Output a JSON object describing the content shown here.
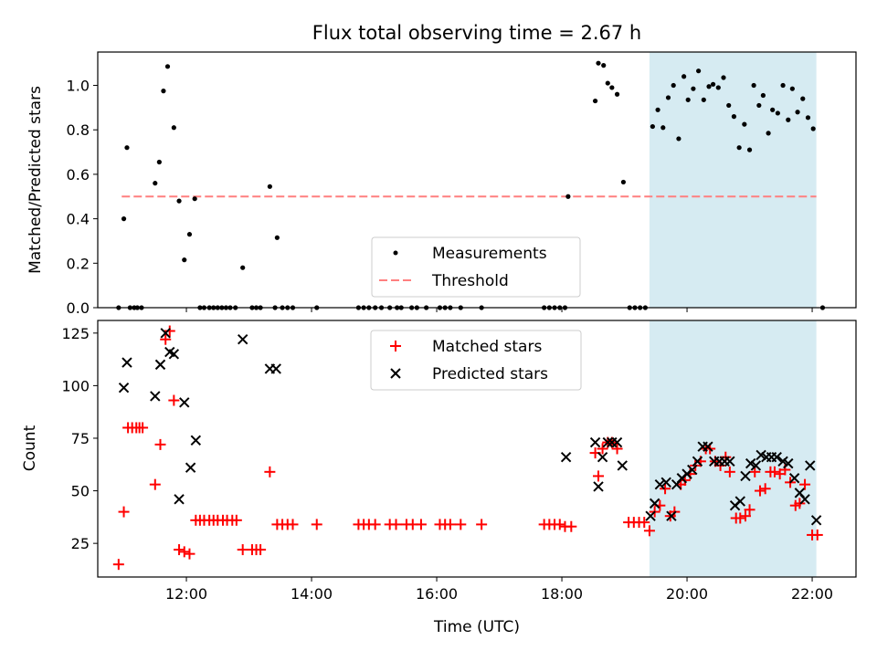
{
  "chart_data": [
    {
      "type": "scatter",
      "title": "Flux total observing time = 2.67 h",
      "ylabel": "Matched/Predicted stars",
      "xlim": [
        "10:35",
        "22:42"
      ],
      "ylim": [
        0,
        1.15
      ],
      "yticks": [
        0.0,
        0.2,
        0.4,
        0.6,
        0.8,
        1.0
      ],
      "ytick_labels": [
        "0.0",
        "0.2",
        "0.4",
        "0.6",
        "0.8",
        "1.0"
      ],
      "x_axis": "time (HH:MM, UTC)",
      "grid": false,
      "legend_position": "lower-center",
      "highlight_span": [
        "19:24",
        "22:04"
      ],
      "highlight_color": "#add8e6",
      "threshold": {
        "name": "Threshold",
        "value": 0.5,
        "x_range": [
          "10:58",
          "22:04"
        ],
        "color": "#ff7f7f",
        "style": "dashed"
      },
      "series": [
        {
          "name": "Measurements",
          "marker": "dot",
          "color": "#000000",
          "points": [
            [
              "10:55",
              0
            ],
            [
              "11:00",
              0.4
            ],
            [
              "11:03",
              0.72
            ],
            [
              "11:06",
              0
            ],
            [
              "11:10",
              0
            ],
            [
              "11:13",
              0
            ],
            [
              "11:17",
              0
            ],
            [
              "11:30",
              0.56
            ],
            [
              "11:34",
              0.655
            ],
            [
              "11:38",
              0.975
            ],
            [
              "11:42",
              1.085
            ],
            [
              "11:48",
              0.81
            ],
            [
              "11:53",
              0.48
            ],
            [
              "11:58",
              0.215
            ],
            [
              "12:03",
              0.33
            ],
            [
              "12:08",
              0.49
            ],
            [
              "12:13",
              0
            ],
            [
              "12:17",
              0
            ],
            [
              "12:22",
              0
            ],
            [
              "12:26",
              0
            ],
            [
              "12:30",
              0
            ],
            [
              "12:34",
              0
            ],
            [
              "12:38",
              0
            ],
            [
              "12:42",
              0
            ],
            [
              "12:47",
              0
            ],
            [
              "12:54",
              0.18
            ],
            [
              "13:03",
              0
            ],
            [
              "13:07",
              0
            ],
            [
              "13:11",
              0
            ],
            [
              "13:20",
              0.545
            ],
            [
              "13:25",
              0
            ],
            [
              "13:27",
              0.315
            ],
            [
              "13:32",
              0
            ],
            [
              "13:37",
              0
            ],
            [
              "13:42",
              0
            ],
            [
              "14:05",
              0
            ],
            [
              "14:45",
              0
            ],
            [
              "14:50",
              0
            ],
            [
              "14:55",
              0
            ],
            [
              "15:01",
              0
            ],
            [
              "15:07",
              0
            ],
            [
              "15:15",
              0
            ],
            [
              "15:22",
              0
            ],
            [
              "15:26",
              0
            ],
            [
              "15:36",
              0
            ],
            [
              "15:41",
              0
            ],
            [
              "15:50",
              0
            ],
            [
              "16:03",
              0
            ],
            [
              "16:08",
              0
            ],
            [
              "16:13",
              0
            ],
            [
              "16:23",
              0
            ],
            [
              "16:43",
              0
            ],
            [
              "17:43",
              0
            ],
            [
              "17:48",
              0
            ],
            [
              "17:53",
              0
            ],
            [
              "17:58",
              0
            ],
            [
              "18:03",
              0
            ],
            [
              "18:06",
              0.5
            ],
            [
              "18:32",
              0.93
            ],
            [
              "18:35",
              1.1
            ],
            [
              "18:40",
              1.09
            ],
            [
              "18:44",
              1.01
            ],
            [
              "18:48",
              0.99
            ],
            [
              "18:53",
              0.96
            ],
            [
              "18:59",
              0.565
            ],
            [
              "19:05",
              0
            ],
            [
              "19:10",
              0
            ],
            [
              "19:15",
              0
            ],
            [
              "19:20",
              0
            ],
            [
              "19:27",
              0.815
            ],
            [
              "19:32",
              0.89
            ],
            [
              "19:37",
              0.81
            ],
            [
              "19:42",
              0.945
            ],
            [
              "19:47",
              1.0
            ],
            [
              "19:52",
              0.76
            ],
            [
              "19:57",
              1.04
            ],
            [
              "20:01",
              0.935
            ],
            [
              "20:06",
              0.985
            ],
            [
              "20:11",
              1.065
            ],
            [
              "20:16",
              0.935
            ],
            [
              "20:21",
              0.995
            ],
            [
              "20:25",
              1.005
            ],
            [
              "20:30",
              0.99
            ],
            [
              "20:35",
              1.035
            ],
            [
              "20:40",
              0.91
            ],
            [
              "20:45",
              0.86
            ],
            [
              "20:50",
              0.72
            ],
            [
              "20:55",
              0.825
            ],
            [
              "21:00",
              0.71
            ],
            [
              "21:04",
              1.0
            ],
            [
              "21:09",
              0.91
            ],
            [
              "21:13",
              0.955
            ],
            [
              "21:18",
              0.785
            ],
            [
              "21:22",
              0.89
            ],
            [
              "21:27",
              0.875
            ],
            [
              "21:32",
              1.0
            ],
            [
              "21:37",
              0.845
            ],
            [
              "21:41",
              0.985
            ],
            [
              "21:46",
              0.88
            ],
            [
              "21:51",
              0.94
            ],
            [
              "21:56",
              0.855
            ],
            [
              "22:01",
              0.805
            ],
            [
              "22:10",
              0
            ]
          ]
        }
      ]
    },
    {
      "type": "scatter",
      "xlabel": "Time (UTC)",
      "ylabel": "Count",
      "xlim": [
        "10:35",
        "22:42"
      ],
      "ylim": [
        9,
        131
      ],
      "xticks": [
        "12:00",
        "14:00",
        "16:00",
        "18:00",
        "20:00",
        "22:00"
      ],
      "yticks": [
        25,
        50,
        75,
        100,
        125
      ],
      "ytick_labels": [
        "25",
        "50",
        "75",
        "100",
        "125"
      ],
      "grid": false,
      "legend_position": "upper-center",
      "highlight_span": [
        "19:24",
        "22:04"
      ],
      "highlight_color": "#add8e6",
      "series": [
        {
          "name": "Matched stars",
          "marker": "plus",
          "color": "#ff0000",
          "points": [
            [
              "10:55",
              15
            ],
            [
              "11:00",
              40
            ],
            [
              "11:04",
              80
            ],
            [
              "11:08",
              80
            ],
            [
              "11:12",
              80
            ],
            [
              "11:15",
              80
            ],
            [
              "11:18",
              80
            ],
            [
              "11:30",
              53
            ],
            [
              "11:35",
              72
            ],
            [
              "11:40",
              122
            ],
            [
              "11:44",
              126
            ],
            [
              "11:48",
              93
            ],
            [
              "11:53",
              22
            ],
            [
              "11:58",
              21
            ],
            [
              "12:03",
              20
            ],
            [
              "12:09",
              36
            ],
            [
              "12:13",
              36
            ],
            [
              "12:17",
              36
            ],
            [
              "12:22",
              36
            ],
            [
              "12:26",
              36
            ],
            [
              "12:30",
              36
            ],
            [
              "12:35",
              36
            ],
            [
              "12:39",
              36
            ],
            [
              "12:44",
              36
            ],
            [
              "12:48",
              36
            ],
            [
              "12:54",
              22
            ],
            [
              "13:03",
              22
            ],
            [
              "13:07",
              22
            ],
            [
              "13:11",
              22
            ],
            [
              "13:20",
              59
            ],
            [
              "13:27",
              34
            ],
            [
              "13:32",
              34
            ],
            [
              "13:37",
              34
            ],
            [
              "13:42",
              34
            ],
            [
              "14:05",
              34
            ],
            [
              "14:45",
              34
            ],
            [
              "14:50",
              34
            ],
            [
              "14:55",
              34
            ],
            [
              "15:01",
              34
            ],
            [
              "15:15",
              34
            ],
            [
              "15:21",
              34
            ],
            [
              "15:31",
              34
            ],
            [
              "15:37",
              34
            ],
            [
              "15:45",
              34
            ],
            [
              "16:03",
              34
            ],
            [
              "16:08",
              34
            ],
            [
              "16:13",
              34
            ],
            [
              "16:23",
              34
            ],
            [
              "16:43",
              34
            ],
            [
              "17:43",
              34
            ],
            [
              "17:48",
              34
            ],
            [
              "17:53",
              34
            ],
            [
              "17:58",
              34
            ],
            [
              "18:03",
              33
            ],
            [
              "18:09",
              33
            ],
            [
              "18:32",
              68
            ],
            [
              "18:35",
              57
            ],
            [
              "18:39",
              70
            ],
            [
              "18:44",
              73
            ],
            [
              "18:48",
              73
            ],
            [
              "18:53",
              70
            ],
            [
              "19:04",
              35
            ],
            [
              "19:09",
              35
            ],
            [
              "19:14",
              35
            ],
            [
              "19:19",
              35
            ],
            [
              "19:24",
              31
            ],
            [
              "19:29",
              40
            ],
            [
              "19:34",
              43
            ],
            [
              "19:39",
              51
            ],
            [
              "19:44",
              38
            ],
            [
              "19:48",
              40
            ],
            [
              "19:54",
              53
            ],
            [
              "19:58",
              55
            ],
            [
              "20:03",
              58
            ],
            [
              "20:08",
              62
            ],
            [
              "20:13",
              64
            ],
            [
              "20:18",
              70
            ],
            [
              "20:22",
              70
            ],
            [
              "20:27",
              64
            ],
            [
              "20:32",
              62
            ],
            [
              "20:37",
              66
            ],
            [
              "20:41",
              59
            ],
            [
              "20:47",
              37
            ],
            [
              "20:51",
              37
            ],
            [
              "20:56",
              38
            ],
            [
              "21:00",
              41
            ],
            [
              "21:05",
              59
            ],
            [
              "21:10",
              50
            ],
            [
              "21:15",
              51
            ],
            [
              "21:20",
              59
            ],
            [
              "21:24",
              59
            ],
            [
              "21:29",
              58
            ],
            [
              "21:34",
              60
            ],
            [
              "21:39",
              54
            ],
            [
              "21:44",
              43
            ],
            [
              "21:48",
              44
            ],
            [
              "21:53",
              53
            ],
            [
              "22:00",
              29
            ],
            [
              "22:05",
              29
            ]
          ]
        },
        {
          "name": "Predicted stars",
          "marker": "x",
          "color": "#000000",
          "points": [
            [
              "11:00",
              99
            ],
            [
              "11:03",
              111
            ],
            [
              "11:30",
              95
            ],
            [
              "11:35",
              110
            ],
            [
              "11:40",
              125
            ],
            [
              "11:44",
              116
            ],
            [
              "11:48",
              115
            ],
            [
              "11:53",
              46
            ],
            [
              "11:58",
              92
            ],
            [
              "12:04",
              61
            ],
            [
              "12:09",
              74
            ],
            [
              "12:54",
              122
            ],
            [
              "13:20",
              108
            ],
            [
              "13:26",
              108
            ],
            [
              "18:04",
              66
            ],
            [
              "18:32",
              73
            ],
            [
              "18:35",
              52
            ],
            [
              "18:39",
              66
            ],
            [
              "18:44",
              73
            ],
            [
              "18:48",
              73
            ],
            [
              "18:53",
              73
            ],
            [
              "18:58",
              62
            ],
            [
              "19:25",
              38
            ],
            [
              "19:29",
              44
            ],
            [
              "19:34",
              53
            ],
            [
              "19:40",
              54
            ],
            [
              "19:45",
              38
            ],
            [
              "19:50",
              53
            ],
            [
              "19:55",
              56
            ],
            [
              "20:00",
              58
            ],
            [
              "20:05",
              60
            ],
            [
              "20:10",
              64
            ],
            [
              "20:15",
              71
            ],
            [
              "20:20",
              71
            ],
            [
              "20:26",
              64
            ],
            [
              "20:31",
              64
            ],
            [
              "20:36",
              64
            ],
            [
              "20:41",
              64
            ],
            [
              "20:46",
              43
            ],
            [
              "20:51",
              45
            ],
            [
              "20:56",
              57
            ],
            [
              "21:01",
              63
            ],
            [
              "21:06",
              62
            ],
            [
              "21:11",
              67
            ],
            [
              "21:16",
              66
            ],
            [
              "21:21",
              66
            ],
            [
              "21:26",
              66
            ],
            [
              "21:32",
              64
            ],
            [
              "21:37",
              63
            ],
            [
              "21:43",
              56
            ],
            [
              "21:48",
              49
            ],
            [
              "21:53",
              46
            ],
            [
              "21:58",
              62
            ],
            [
              "22:04",
              36
            ]
          ]
        }
      ]
    }
  ]
}
